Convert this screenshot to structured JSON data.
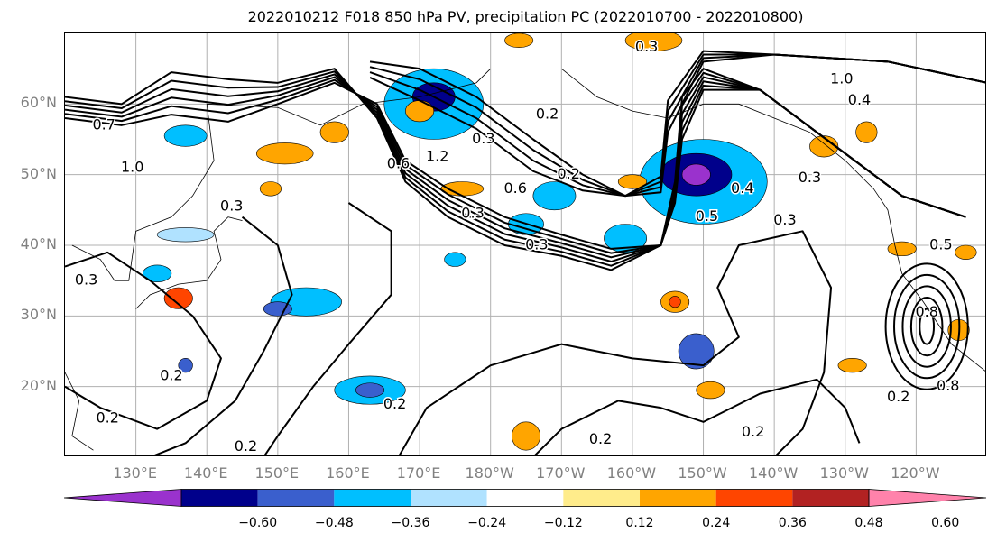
{
  "title": "2022010212 F018 850 hPa PV, precipitation PC (2022010700 - 2022010800)",
  "map": {
    "lat_labels": [
      {
        "label": "60°N",
        "lat": 60
      },
      {
        "label": "50°N",
        "lat": 50
      },
      {
        "label": "40°N",
        "lat": 40
      },
      {
        "label": "30°N",
        "lat": 30
      },
      {
        "label": "20°N",
        "lat": 20
      }
    ],
    "lon_labels": [
      {
        "label": "130°E",
        "lon": 130
      },
      {
        "label": "140°E",
        "lon": 140
      },
      {
        "label": "150°E",
        "lon": 150
      },
      {
        "label": "160°E",
        "lon": 160
      },
      {
        "label": "170°E",
        "lon": 170
      },
      {
        "label": "180°W",
        "lon": 180
      },
      {
        "label": "170°W",
        "lon": 190
      },
      {
        "label": "160°W",
        "lon": 200
      },
      {
        "label": "150°W",
        "lon": 210
      },
      {
        "label": "140°W",
        "lon": 220
      },
      {
        "label": "130°W",
        "lon": 230
      },
      {
        "label": "120°W",
        "lon": 240
      }
    ],
    "lon_range": [
      120,
      250
    ],
    "lat_range": [
      10,
      70
    ],
    "contour_labels": [
      {
        "text": "0.7",
        "lon": 125.5,
        "lat": 57.0
      },
      {
        "text": "1.0",
        "lon": 129.5,
        "lat": 51.0
      },
      {
        "text": "0.3",
        "lon": 143.5,
        "lat": 45.5
      },
      {
        "text": "0.3",
        "lon": 123.0,
        "lat": 35.0
      },
      {
        "text": "0.2",
        "lon": 126.0,
        "lat": 15.5
      },
      {
        "text": "0.2",
        "lon": 135.0,
        "lat": 21.5
      },
      {
        "text": "0.2",
        "lon": 145.5,
        "lat": 11.5
      },
      {
        "text": "0.2",
        "lon": 166.5,
        "lat": 17.5
      },
      {
        "text": "0.2",
        "lon": 195.5,
        "lat": 12.5
      },
      {
        "text": "0.2",
        "lon": 217.0,
        "lat": 13.5
      },
      {
        "text": "0.2",
        "lon": 188.0,
        "lat": 58.5
      },
      {
        "text": "0.3",
        "lon": 179.0,
        "lat": 55.0
      },
      {
        "text": "1.2",
        "lon": 172.5,
        "lat": 52.5
      },
      {
        "text": "0.6",
        "lon": 167.0,
        "lat": 51.5
      },
      {
        "text": "0.6",
        "lon": 183.5,
        "lat": 48.0
      },
      {
        "text": "0.2",
        "lon": 191.0,
        "lat": 50.0
      },
      {
        "text": "0.3",
        "lon": 177.5,
        "lat": 44.5
      },
      {
        "text": "0.3",
        "lon": 186.5,
        "lat": 40.0
      },
      {
        "text": "0.4",
        "lon": 215.5,
        "lat": 48.0
      },
      {
        "text": "0.5",
        "lon": 210.5,
        "lat": 44.0
      },
      {
        "text": "0.3",
        "lon": 225.0,
        "lat": 49.5
      },
      {
        "text": "0.3",
        "lon": 221.5,
        "lat": 43.5
      },
      {
        "text": "0.5",
        "lon": 243.5,
        "lat": 40.0
      },
      {
        "text": "0.8",
        "lon": 241.5,
        "lat": 30.5
      },
      {
        "text": "0.8",
        "lon": 244.5,
        "lat": 20.0
      },
      {
        "text": "0.2",
        "lon": 237.5,
        "lat": 18.5
      },
      {
        "text": "1.0",
        "lon": 229.5,
        "lat": 63.5
      },
      {
        "text": "0.3",
        "lon": 202.0,
        "lat": 68.0
      },
      {
        "text": "0.4",
        "lon": 232.0,
        "lat": 60.5
      }
    ]
  },
  "colorbar": {
    "colors": [
      "#9a32cd",
      "#00008b",
      "#3a5fcd",
      "#00bfff",
      "#b0e2ff",
      "#ffffff",
      "#ffec8b",
      "#ffa500",
      "#ff4500",
      "#b22222",
      "#ff82ab"
    ],
    "tick_labels": [
      "−0.60",
      "−0.48",
      "−0.36",
      "−0.24",
      "−0.12",
      "0.12",
      "0.24",
      "0.36",
      "0.48",
      "0.60"
    ]
  },
  "colors": {
    "contour": "#000000",
    "grid": "#b0b0b0",
    "coastline": "#000000",
    "axis_label": "#808080"
  }
}
